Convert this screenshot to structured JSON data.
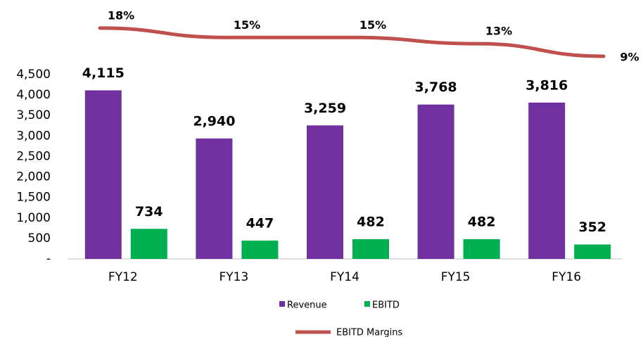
{
  "chart_data": {
    "type": "bar",
    "categories": [
      "FY12",
      "FY13",
      "FY14",
      "FY15",
      "FY16"
    ],
    "series": [
      {
        "name": "Revenue",
        "color": "#7030a0",
        "values": [
          4115,
          2940,
          3259,
          3768,
          3816
        ],
        "value_labels": [
          "4,115",
          "2,940",
          "3,259",
          "3,768",
          "3,816"
        ]
      },
      {
        "name": "EBITD",
        "color": "#00b050",
        "values": [
          734,
          447,
          482,
          482,
          352
        ]
      },
      {
        "name": "EBITD Margins",
        "type": "line",
        "axis": "y2",
        "color": "#c0504d",
        "values": [
          18,
          15,
          15,
          13,
          9
        ],
        "value_labels": [
          "18%",
          "15%",
          "15%",
          "13%",
          "9%"
        ]
      }
    ],
    "ylim": [
      0,
      4500
    ],
    "yticks": [
      {
        "value": 0,
        "label": "-"
      },
      500,
      {
        "value": 1000,
        "label": "1,000"
      },
      {
        "value": 1500,
        "label": "1,500"
      },
      {
        "value": 2000,
        "label": "2,000"
      },
      {
        "value": 2500,
        "label": "2,500"
      },
      {
        "value": 3000,
        "label": "3,000"
      },
      {
        "value": 3500,
        "label": "3,500"
      },
      {
        "value": 4000,
        "label": "4,000"
      },
      {
        "value": 4500,
        "label": "4,500"
      }
    ],
    "y2lim": [
      0,
      20
    ],
    "grid": false
  }
}
